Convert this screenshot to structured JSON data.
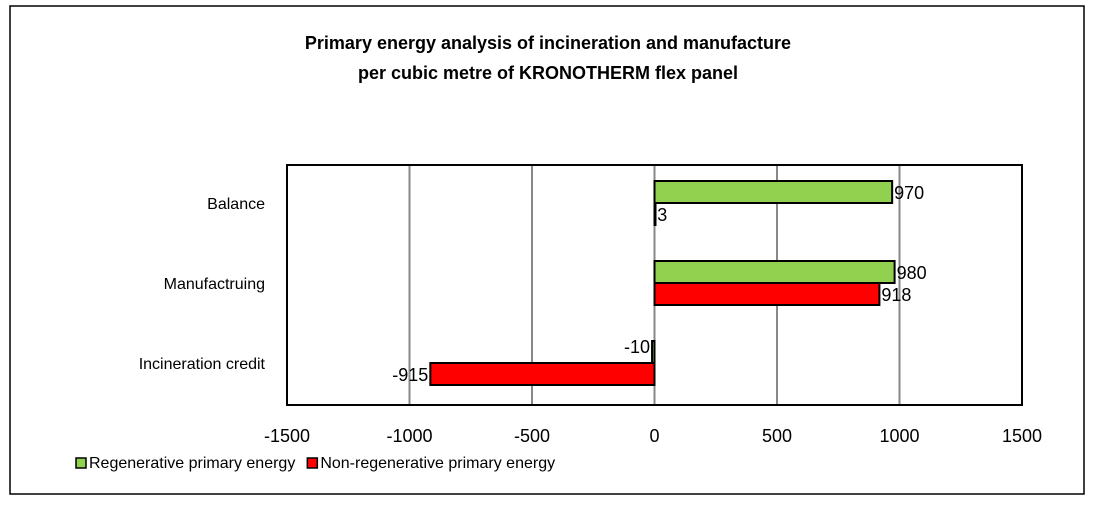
{
  "chart_data": {
    "type": "hbar",
    "title": [
      "Primary energy analysis of incineration and manufacture",
      "per cubic metre of KRONOTHERM flex panel"
    ],
    "categories": [
      "Balance",
      "Manufactruing",
      "Incineration credit"
    ],
    "series": [
      {
        "name": "Regenerative primary energy",
        "color": "#92d050",
        "values": [
          970,
          980,
          -10
        ]
      },
      {
        "name": "Non-regenerative primary energy",
        "color": "#ff0000",
        "values": [
          3,
          918,
          -915
        ]
      }
    ],
    "xlim": [
      -1500,
      1500
    ],
    "xticks": [
      -1500,
      -1000,
      -500,
      0,
      500,
      1000,
      1500
    ],
    "grid": true,
    "legend": "bottom-left"
  }
}
